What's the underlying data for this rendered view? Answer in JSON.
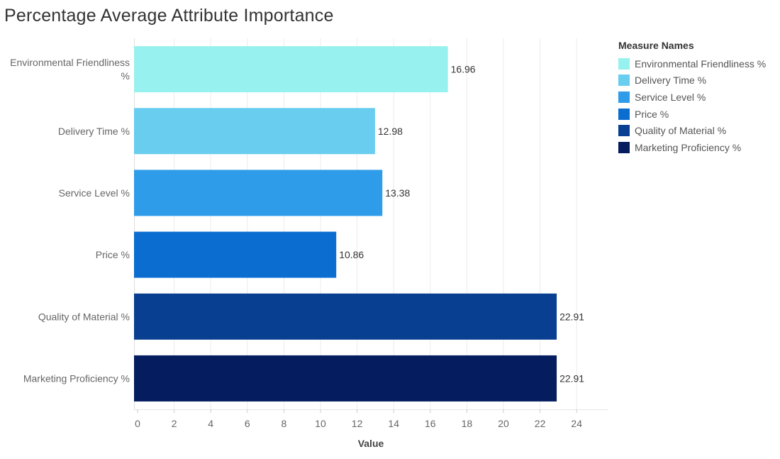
{
  "chart_data": {
    "type": "bar",
    "orientation": "horizontal",
    "title": "Percentage Average Attribute Importance",
    "xlabel": "Value",
    "ylabel": "",
    "xlim": [
      0,
      24
    ],
    "x_ticks": [
      0,
      2,
      4,
      6,
      8,
      10,
      12,
      14,
      16,
      18,
      20,
      22,
      24
    ],
    "grid": "vertical",
    "categories": [
      "Environmental Friendliness %",
      "Delivery Time %",
      "Service Level %",
      "Price %",
      "Quality of Material %",
      "Marketing Proficiency %"
    ],
    "category_label_lines": [
      [
        "Environmental Friendliness",
        "%"
      ],
      [
        "Delivery Time %"
      ],
      [
        "Service Level %"
      ],
      [
        "Price %"
      ],
      [
        "Quality of Material %"
      ],
      [
        "Marketing Proficiency %"
      ]
    ],
    "values": [
      16.96,
      12.98,
      13.38,
      10.86,
      22.91,
      22.91
    ],
    "value_labels": [
      "16.96",
      "12.98",
      "13.38",
      "10.86",
      "22.91",
      "22.91"
    ],
    "colors": [
      "#97f1ee",
      "#68cdee",
      "#2f9cea",
      "#0b6dd0",
      "#083f90",
      "#051d5e"
    ],
    "legend": {
      "title": "Measure Names",
      "position": "top-right",
      "entries": [
        "Environmental Friendliness %",
        "Delivery Time %",
        "Service Level %",
        "Price %",
        "Quality of Material %",
        "Marketing Proficiency %"
      ]
    }
  }
}
